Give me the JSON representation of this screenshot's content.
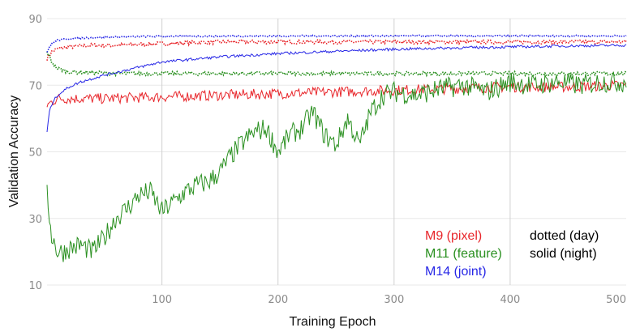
{
  "chart_data": {
    "type": "line",
    "xlabel": "Training Epoch",
    "ylabel": "Validation Accuracy",
    "xlim": [
      1,
      500
    ],
    "ylim": [
      10,
      90
    ],
    "xticks": [
      100,
      200,
      300,
      400,
      500
    ],
    "yticks": [
      10,
      30,
      50,
      70,
      90
    ],
    "grid": true,
    "legend": {
      "placement": "bottom-right",
      "models": [
        {
          "label": "M9 (pixel)",
          "color": "#e8262b"
        },
        {
          "label": "M11 (feature)",
          "color": "#2a9020"
        },
        {
          "label": "M14 (joint)",
          "color": "#2727e6"
        }
      ],
      "styles": [
        {
          "label": "dotted (day)"
        },
        {
          "label": "solid (night)"
        }
      ]
    },
    "series": [
      {
        "model": "M9",
        "condition": "day",
        "style": "dotted",
        "color": "#e8262b",
        "x": [
          1,
          5,
          10,
          20,
          40,
          60,
          100,
          150,
          200,
          300,
          400,
          500
        ],
        "y": [
          78,
          80,
          81,
          81.5,
          82,
          82,
          82.5,
          83,
          83,
          83,
          83,
          83
        ]
      },
      {
        "model": "M9",
        "condition": "night",
        "style": "solid",
        "color": "#e8262b",
        "x": [
          1,
          5,
          10,
          20,
          50,
          100,
          150,
          200,
          250,
          300,
          350,
          400,
          450,
          500
        ],
        "y": [
          64,
          65,
          66,
          66,
          66,
          66.5,
          67,
          67.5,
          68,
          68.5,
          69,
          69.5,
          69.5,
          70
        ]
      },
      {
        "model": "M11",
        "condition": "day",
        "style": "dotted",
        "color": "#2a9020",
        "x": [
          1,
          5,
          10,
          20,
          40,
          60,
          100,
          200,
          300,
          400,
          500
        ],
        "y": [
          80,
          77,
          75,
          74,
          73.8,
          73.5,
          73.5,
          73.5,
          73.5,
          73.5,
          73.5
        ]
      },
      {
        "model": "M11",
        "condition": "night",
        "style": "solid",
        "color": "#2a9020",
        "x": [
          1,
          5,
          10,
          15,
          20,
          30,
          40,
          50,
          60,
          70,
          80,
          90,
          100,
          110,
          120,
          130,
          140,
          150,
          160,
          170,
          180,
          190,
          200,
          210,
          220,
          230,
          240,
          250,
          260,
          270,
          280,
          290,
          300,
          320,
          340,
          360,
          380,
          400,
          420,
          440,
          460,
          480,
          500
        ],
        "y": [
          37,
          25,
          20,
          20,
          21,
          22,
          20,
          24,
          30,
          33,
          37,
          38,
          32,
          35,
          38,
          40,
          41,
          44,
          49,
          53,
          56,
          57,
          50,
          55,
          57,
          62,
          55,
          52,
          60,
          52,
          62,
          67,
          68,
          67,
          69,
          70,
          68,
          71,
          70,
          71,
          70,
          71,
          71
        ]
      },
      {
        "model": "M14",
        "condition": "day",
        "style": "dotted",
        "color": "#2727e6",
        "x": [
          1,
          5,
          10,
          20,
          40,
          60,
          100,
          200,
          300,
          400,
          500
        ],
        "y": [
          80,
          82.5,
          83.5,
          84,
          84.3,
          84.5,
          84.7,
          84.8,
          84.8,
          84.8,
          84.8
        ]
      },
      {
        "model": "M14",
        "condition": "night",
        "style": "solid",
        "color": "#2727e6",
        "x": [
          1,
          3,
          6,
          10,
          20,
          30,
          50,
          75,
          100,
          150,
          200,
          250,
          300,
          350,
          400,
          450,
          500
        ],
        "y": [
          56,
          62,
          65,
          67,
          69.5,
          71,
          73,
          75,
          77,
          78.5,
          79.5,
          80.2,
          80.8,
          81.2,
          81.5,
          81.8,
          82
        ]
      }
    ]
  }
}
